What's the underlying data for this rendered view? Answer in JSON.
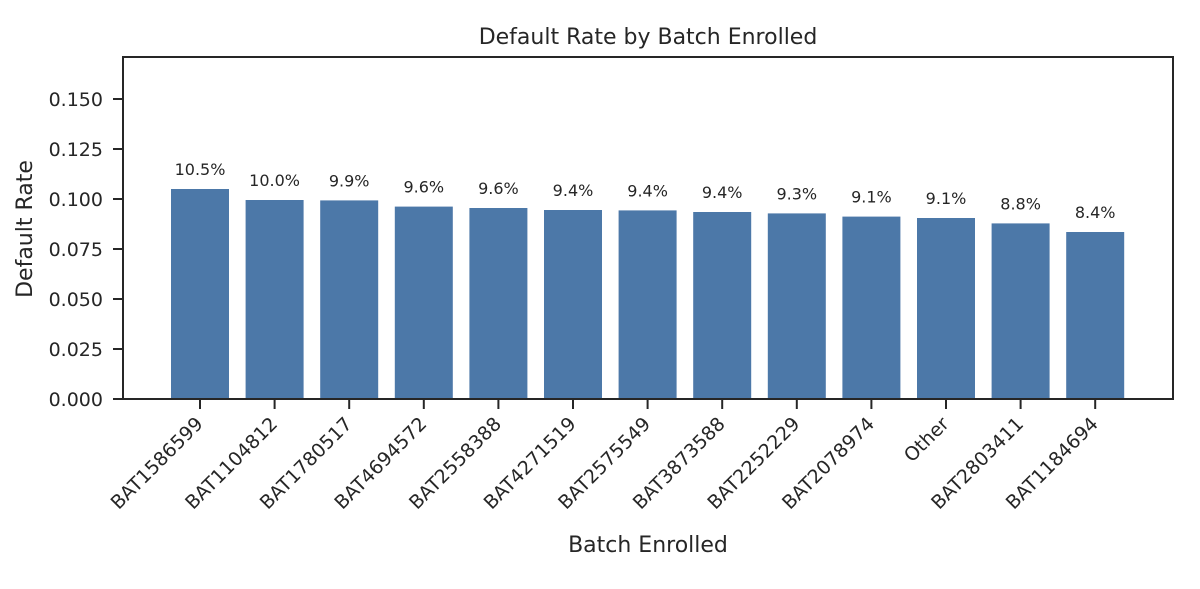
{
  "chart_data": {
    "type": "bar",
    "title": "Default Rate by Batch Enrolled",
    "xlabel": "Batch Enrolled",
    "ylabel": "Default Rate",
    "categories": [
      "BAT1586599",
      "BAT1104812",
      "BAT1780517",
      "BAT4694572",
      "BAT2558388",
      "BAT4271519",
      "BAT2575549",
      "BAT3873588",
      "BAT2252229",
      "BAT2078974",
      "Other",
      "BAT2803411",
      "BAT1184694"
    ],
    "values": [
      0.105,
      0.0995,
      0.0993,
      0.0962,
      0.0955,
      0.0945,
      0.0943,
      0.0935,
      0.0928,
      0.0912,
      0.0905,
      0.0878,
      0.0835
    ],
    "data_labels": [
      "10.5%",
      "10.0%",
      "9.9%",
      "9.6%",
      "9.6%",
      "9.4%",
      "9.4%",
      "9.4%",
      "9.3%",
      "9.1%",
      "9.1%",
      "8.8%",
      "8.4%"
    ],
    "ylim": [
      0,
      0.171
    ],
    "yticks": [
      0.0,
      0.025,
      0.05,
      0.075,
      0.1,
      0.125,
      0.15
    ],
    "ytick_labels": [
      "0.000",
      "0.025",
      "0.050",
      "0.075",
      "0.100",
      "0.125",
      "0.150"
    ],
    "grid": false,
    "colors": {
      "bar": "#4c78a8",
      "axis": "#262626",
      "text": "#262626"
    }
  }
}
